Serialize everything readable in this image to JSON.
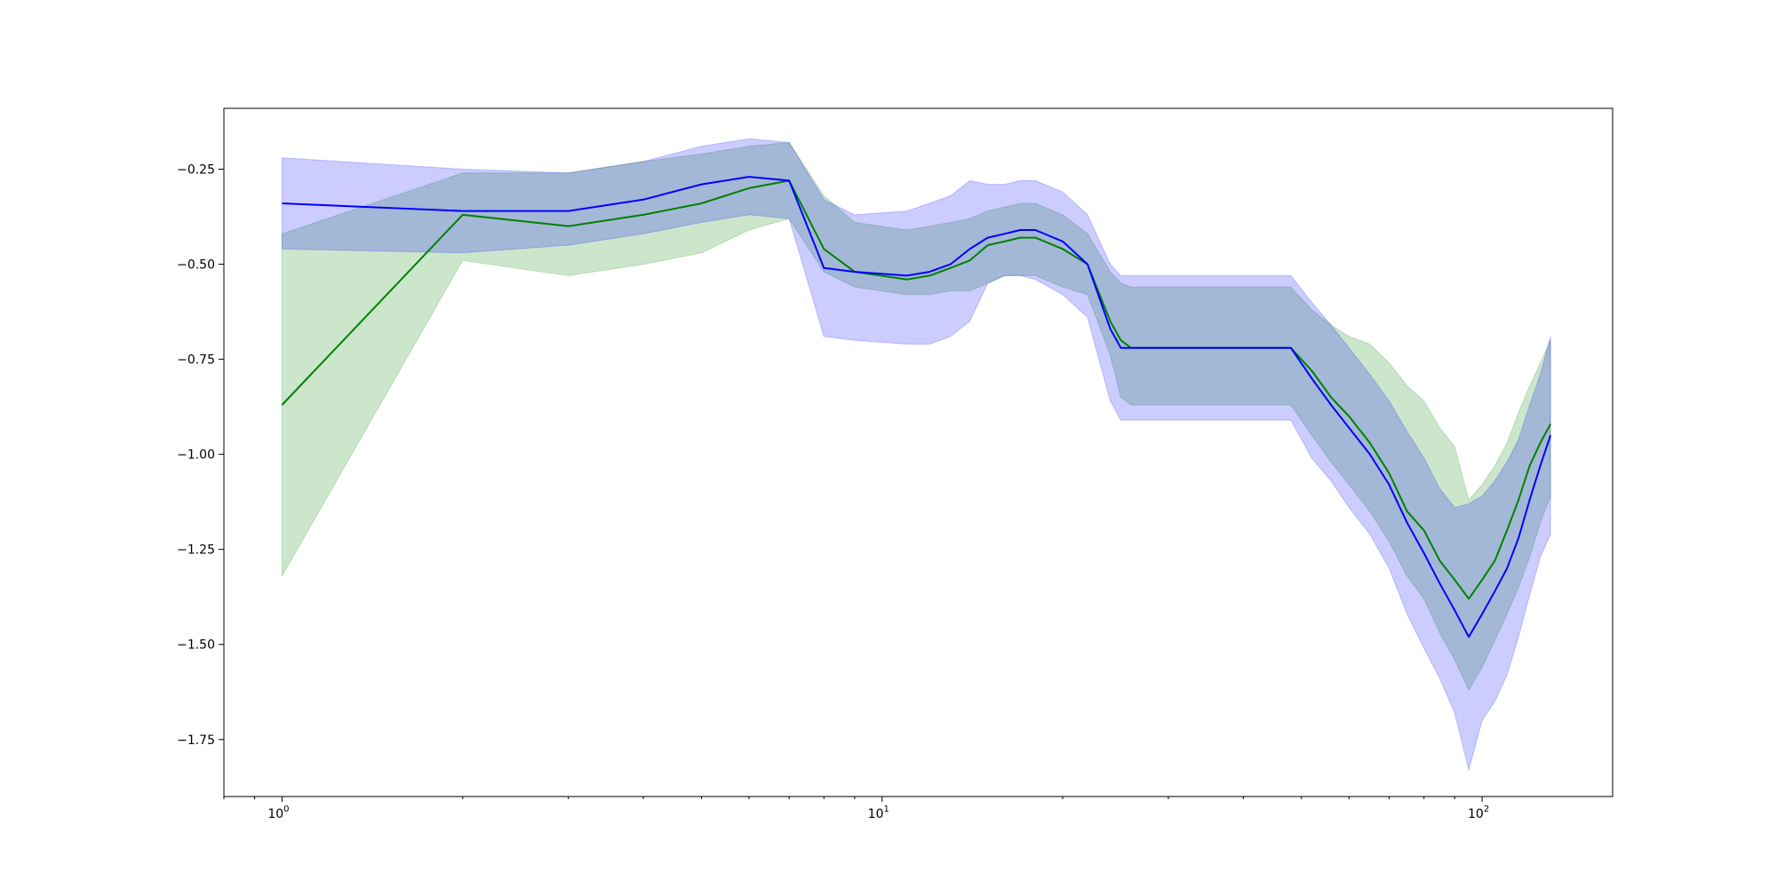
{
  "chart_data": {
    "type": "area",
    "title": "",
    "xlabel": "",
    "ylabel": "",
    "xscale": "log",
    "xlim": [
      0.8,
      165
    ],
    "ylim": [
      -1.9,
      -0.09
    ],
    "grid": false,
    "legend": "none",
    "x_tick_labels": [
      {
        "base": "10",
        "exp": "0",
        "value": 1
      },
      {
        "base": "10",
        "exp": "1",
        "value": 10
      },
      {
        "base": "10",
        "exp": "2",
        "value": 100
      }
    ],
    "y_ticks": [
      -0.25,
      -0.5,
      -0.75,
      -1.0,
      -1.25,
      -1.5,
      -1.75
    ],
    "y_tick_labels": [
      "−0.25",
      "−0.50",
      "−0.75",
      "−1.00",
      "−1.25",
      "−1.50",
      "−1.75"
    ],
    "series": [
      {
        "color": "#008000",
        "band_color": "#008000",
        "band_opacity": 0.2,
        "points": [
          [
            1,
            -0.87,
            -1.32,
            -0.42
          ],
          [
            2,
            -0.37,
            -0.49,
            -0.26
          ],
          [
            3,
            -0.4,
            -0.53,
            -0.26
          ],
          [
            4,
            -0.37,
            -0.5,
            -0.23
          ],
          [
            5,
            -0.34,
            -0.47,
            -0.21
          ],
          [
            6,
            -0.3,
            -0.41,
            -0.19
          ],
          [
            7,
            -0.28,
            -0.38,
            -0.18
          ],
          [
            8,
            -0.46,
            -0.52,
            -0.32
          ],
          [
            9,
            -0.52,
            -0.56,
            -0.39
          ],
          [
            11,
            -0.54,
            -0.58,
            -0.41
          ],
          [
            12,
            -0.53,
            -0.58,
            -0.4
          ],
          [
            13,
            -0.51,
            -0.57,
            -0.39
          ],
          [
            14,
            -0.49,
            -0.57,
            -0.38
          ],
          [
            15,
            -0.45,
            -0.55,
            -0.36
          ],
          [
            16,
            -0.44,
            -0.53,
            -0.35
          ],
          [
            17,
            -0.43,
            -0.53,
            -0.34
          ],
          [
            18,
            -0.43,
            -0.53,
            -0.34
          ],
          [
            20,
            -0.46,
            -0.56,
            -0.37
          ],
          [
            22,
            -0.5,
            -0.58,
            -0.42
          ],
          [
            24,
            -0.65,
            -0.74,
            -0.52
          ],
          [
            25,
            -0.7,
            -0.85,
            -0.55
          ],
          [
            26,
            -0.72,
            -0.87,
            -0.56
          ],
          [
            48,
            -0.72,
            -0.87,
            -0.56
          ],
          [
            52,
            -0.78,
            -0.95,
            -0.62
          ],
          [
            56,
            -0.85,
            -1.02,
            -0.66
          ],
          [
            60,
            -0.9,
            -1.08,
            -0.69
          ],
          [
            65,
            -0.97,
            -1.15,
            -0.71
          ],
          [
            70,
            -1.05,
            -1.23,
            -0.76
          ],
          [
            75,
            -1.15,
            -1.32,
            -0.82
          ],
          [
            80,
            -1.2,
            -1.38,
            -0.86
          ],
          [
            85,
            -1.28,
            -1.47,
            -0.93
          ],
          [
            90,
            -1.33,
            -1.54,
            -0.98
          ],
          [
            95,
            -1.38,
            -1.62,
            -1.12
          ],
          [
            100,
            -1.33,
            -1.56,
            -1.08
          ],
          [
            105,
            -1.28,
            -1.49,
            -1.03
          ],
          [
            110,
            -1.2,
            -1.42,
            -0.97
          ],
          [
            115,
            -1.12,
            -1.35,
            -0.89
          ],
          [
            120,
            -1.03,
            -1.27,
            -0.82
          ],
          [
            125,
            -0.97,
            -1.18,
            -0.76
          ],
          [
            130,
            -0.92,
            -1.11,
            -0.7
          ]
        ]
      },
      {
        "color": "#0000ff",
        "band_color": "#0000ff",
        "band_opacity": 0.2,
        "points": [
          [
            1,
            -0.34,
            -0.46,
            -0.22
          ],
          [
            2,
            -0.36,
            -0.47,
            -0.25
          ],
          [
            3,
            -0.36,
            -0.45,
            -0.26
          ],
          [
            4,
            -0.33,
            -0.42,
            -0.23
          ],
          [
            5,
            -0.29,
            -0.39,
            -0.19
          ],
          [
            6,
            -0.27,
            -0.37,
            -0.17
          ],
          [
            7,
            -0.28,
            -0.38,
            -0.18
          ],
          [
            8,
            -0.51,
            -0.69,
            -0.33
          ],
          [
            9,
            -0.52,
            -0.7,
            -0.37
          ],
          [
            11,
            -0.53,
            -0.71,
            -0.36
          ],
          [
            12,
            -0.52,
            -0.71,
            -0.34
          ],
          [
            13,
            -0.5,
            -0.69,
            -0.32
          ],
          [
            14,
            -0.46,
            -0.65,
            -0.28
          ],
          [
            15,
            -0.43,
            -0.55,
            -0.29
          ],
          [
            16,
            -0.42,
            -0.53,
            -0.29
          ],
          [
            17,
            -0.41,
            -0.53,
            -0.28
          ],
          [
            18,
            -0.41,
            -0.54,
            -0.28
          ],
          [
            20,
            -0.44,
            -0.58,
            -0.31
          ],
          [
            22,
            -0.5,
            -0.64,
            -0.37
          ],
          [
            24,
            -0.67,
            -0.86,
            -0.5
          ],
          [
            25,
            -0.72,
            -0.91,
            -0.53
          ],
          [
            26,
            -0.72,
            -0.91,
            -0.53
          ],
          [
            48,
            -0.72,
            -0.91,
            -0.53
          ],
          [
            52,
            -0.8,
            -1.01,
            -0.6
          ],
          [
            56,
            -0.87,
            -1.07,
            -0.66
          ],
          [
            60,
            -0.93,
            -1.14,
            -0.72
          ],
          [
            65,
            -1.0,
            -1.21,
            -0.79
          ],
          [
            70,
            -1.08,
            -1.3,
            -0.86
          ],
          [
            75,
            -1.18,
            -1.42,
            -0.94
          ],
          [
            80,
            -1.26,
            -1.51,
            -1.01
          ],
          [
            85,
            -1.34,
            -1.59,
            -1.09
          ],
          [
            90,
            -1.41,
            -1.68,
            -1.14
          ],
          [
            95,
            -1.48,
            -1.83,
            -1.13
          ],
          [
            100,
            -1.42,
            -1.7,
            -1.11
          ],
          [
            105,
            -1.36,
            -1.65,
            -1.07
          ],
          [
            110,
            -1.3,
            -1.58,
            -1.02
          ],
          [
            115,
            -1.22,
            -1.48,
            -0.96
          ],
          [
            120,
            -1.12,
            -1.37,
            -0.87
          ],
          [
            125,
            -1.03,
            -1.27,
            -0.79
          ],
          [
            130,
            -0.95,
            -1.21,
            -0.69
          ]
        ]
      }
    ]
  }
}
